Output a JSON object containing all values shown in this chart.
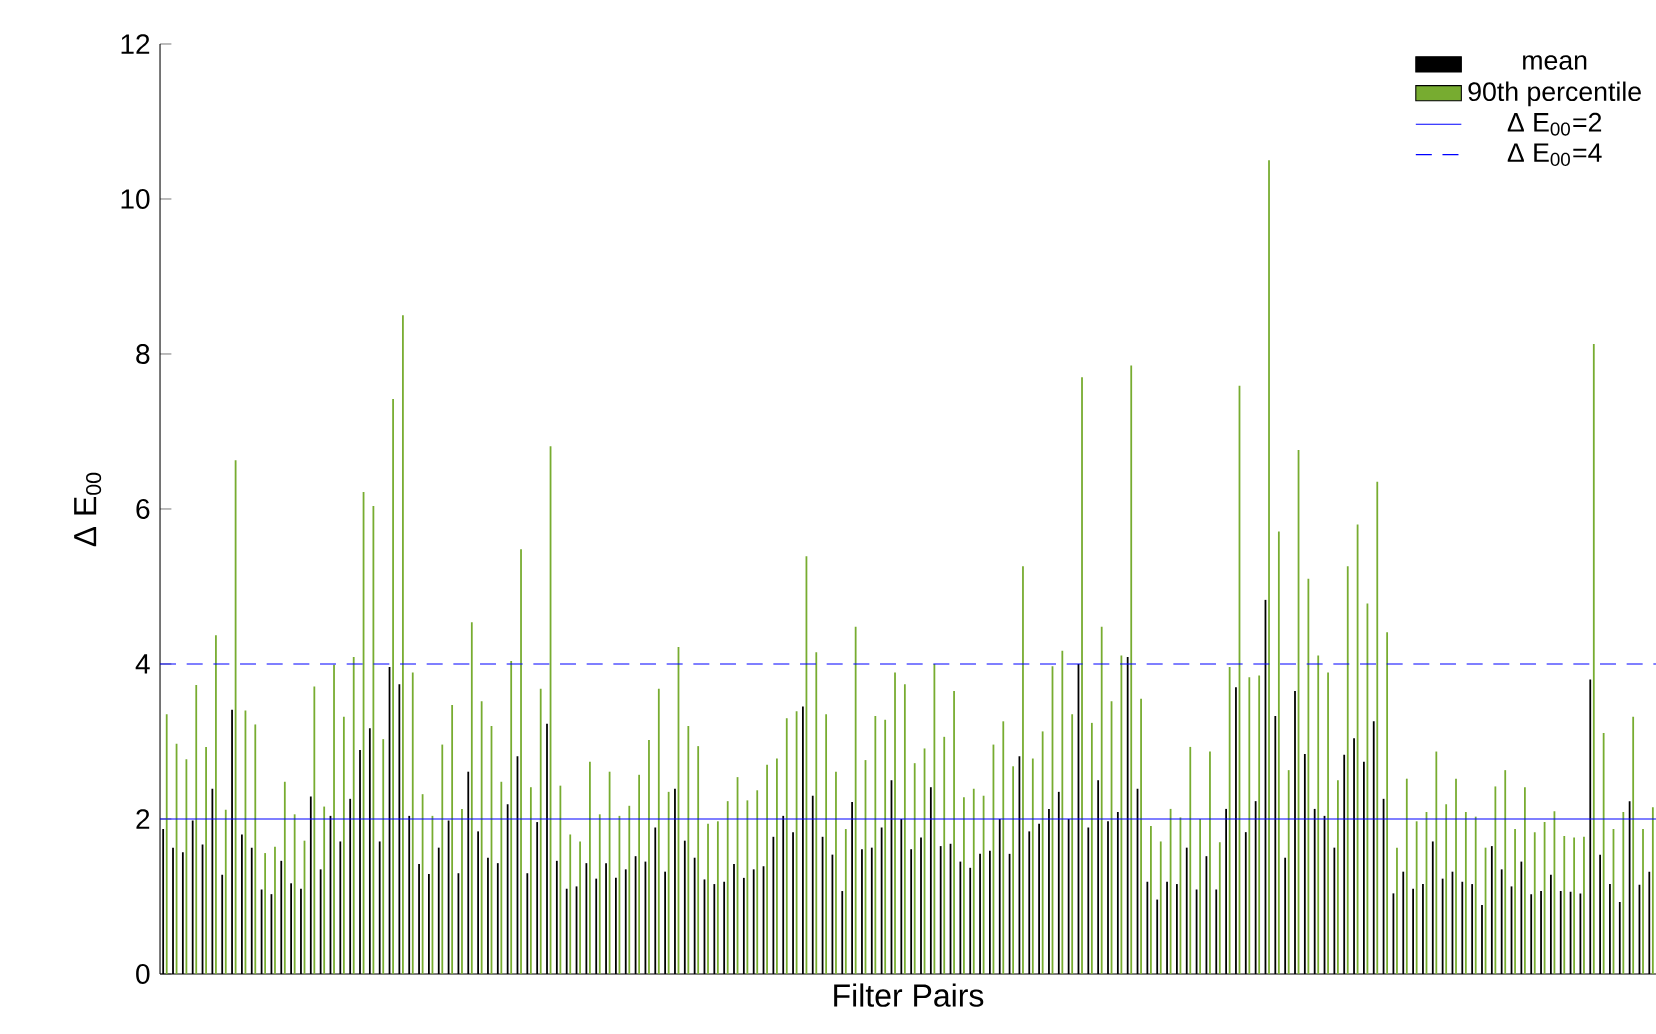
{
  "chart_data": {
    "type": "bar",
    "xlabel": "Filter Pairs",
    "ylabel": "Δ E$_{00}$",
    "categories": [
      null,
      null,
      null,
      null,
      null,
      null,
      null,
      null,
      null,
      null,
      null,
      null,
      null,
      null,
      null,
      null,
      null,
      null,
      null,
      null,
      null,
      null,
      null,
      null,
      null,
      null,
      null,
      null,
      null,
      null,
      null,
      null,
      null,
      null,
      null,
      null,
      null,
      null,
      null,
      null,
      null,
      null,
      null,
      null,
      null,
      null,
      null,
      null,
      null,
      null,
      null,
      null,
      null,
      null,
      null,
      null,
      null,
      null,
      null,
      null,
      null,
      null,
      null,
      null,
      null,
      null,
      null,
      null,
      null,
      null,
      null,
      null,
      null,
      null,
      null,
      null,
      null,
      null,
      null,
      null,
      null,
      null,
      null,
      null,
      null,
      null,
      null,
      null,
      null,
      null,
      null,
      null,
      null,
      null,
      null,
      null,
      null,
      null,
      null,
      null,
      null,
      null,
      null,
      null,
      null,
      null,
      null,
      null,
      null,
      null,
      null,
      null,
      null,
      null,
      null,
      null,
      null,
      null,
      null,
      null,
      null,
      null,
      null,
      null,
      null,
      null,
      null,
      null,
      null,
      null,
      null,
      null,
      null,
      null,
      null,
      null,
      null,
      null,
      null,
      null,
      null,
      null,
      null,
      null,
      null,
      null,
      null,
      null,
      null,
      null,
      null,
      null
    ],
    "series": [
      {
        "name": "mean",
        "color": "#000000",
        "values": [
          1.87,
          1.63,
          1.57,
          1.98,
          1.67,
          2.39,
          1.28,
          3.41,
          1.8,
          1.63,
          1.09,
          1.03,
          1.46,
          1.17,
          1.1,
          2.29,
          1.35,
          2.04,
          1.71,
          2.26,
          2.89,
          3.17,
          1.71,
          3.96,
          3.74,
          2.04,
          1.42,
          1.29,
          1.63,
          1.98,
          1.3,
          2.61,
          1.84,
          1.5,
          1.43,
          2.19,
          2.81,
          1.3,
          1.96,
          3.23,
          1.46,
          1.1,
          1.13,
          1.43,
          1.23,
          1.43,
          1.24,
          1.35,
          1.52,
          1.45,
          1.89,
          1.32,
          2.39,
          1.72,
          1.5,
          1.22,
          1.16,
          1.19,
          1.42,
          1.24,
          1.35,
          1.39,
          1.77,
          2.04,
          1.83,
          3.45,
          2.3,
          1.77,
          1.54,
          1.07,
          2.22,
          1.61,
          1.63,
          1.89,
          2.5,
          2.0,
          1.61,
          1.76,
          2.41,
          1.65,
          1.68,
          1.45,
          1.37,
          1.55,
          1.59,
          2.0,
          1.55,
          2.81,
          1.84,
          1.94,
          2.13,
          2.35,
          2.0,
          4.0,
          1.89,
          2.5,
          1.97,
          2.09,
          4.09,
          2.39,
          1.19,
          0.96,
          1.19,
          1.16,
          1.63,
          1.09,
          1.52,
          1.09,
          2.13,
          3.7,
          1.83,
          2.23,
          4.83,
          3.33,
          1.5,
          3.65,
          2.84,
          2.13,
          2.04,
          1.63,
          2.83,
          3.04,
          2.74,
          3.26,
          2.26,
          1.04,
          1.32,
          1.1,
          1.16,
          1.71,
          1.23,
          1.32,
          1.19,
          1.16,
          0.89,
          1.65,
          1.35,
          1.13,
          1.45,
          1.03,
          1.07,
          1.28,
          1.07,
          1.06,
          1.04,
          3.8,
          1.54,
          1.16,
          0.93,
          2.23,
          1.15,
          1.32
        ]
      },
      {
        "name": "90th percentile",
        "color": "#77ac30",
        "values": [
          3.35,
          2.97,
          2.77,
          3.73,
          2.93,
          4.37,
          2.12,
          6.63,
          3.4,
          3.22,
          1.56,
          1.64,
          2.48,
          2.06,
          1.72,
          3.71,
          2.16,
          3.99,
          3.32,
          4.09,
          6.22,
          6.04,
          3.03,
          7.42,
          8.5,
          3.89,
          2.32,
          2.04,
          2.96,
          3.47,
          2.13,
          4.54,
          3.52,
          3.2,
          2.48,
          4.04,
          5.48,
          2.41,
          3.68,
          6.81,
          2.43,
          1.8,
          1.71,
          2.74,
          2.06,
          2.61,
          2.04,
          2.17,
          2.57,
          3.02,
          3.68,
          2.35,
          4.22,
          3.2,
          2.94,
          1.94,
          1.97,
          2.23,
          2.54,
          2.24,
          2.37,
          2.7,
          2.78,
          3.3,
          3.39,
          5.39,
          4.15,
          3.35,
          2.61,
          1.87,
          4.48,
          2.76,
          3.33,
          3.28,
          3.89,
          3.74,
          2.72,
          2.91,
          4.0,
          3.06,
          3.65,
          2.28,
          2.39,
          2.3,
          2.96,
          3.26,
          2.68,
          5.26,
          2.78,
          3.13,
          3.97,
          4.17,
          3.35,
          7.7,
          3.24,
          4.48,
          3.52,
          4.11,
          7.85,
          3.55,
          1.91,
          1.71,
          2.13,
          2.02,
          2.93,
          2.0,
          2.87,
          1.7,
          3.96,
          7.59,
          3.83,
          3.85,
          10.5,
          5.71,
          2.63,
          6.76,
          5.1,
          4.11,
          3.89,
          2.5,
          5.26,
          5.8,
          4.78,
          6.35,
          4.41,
          1.63,
          2.52,
          1.97,
          2.09,
          2.87,
          2.19,
          2.52,
          2.09,
          2.03,
          1.63,
          2.42,
          2.63,
          1.87,
          2.41,
          1.83,
          1.96,
          2.1,
          1.78,
          1.76,
          1.77,
          8.13,
          3.11,
          1.87,
          2.09,
          3.32,
          1.87,
          2.15
        ]
      }
    ],
    "ylim": [
      0,
      12
    ],
    "yticks": [
      0,
      2,
      4,
      6,
      8,
      10,
      12
    ],
    "ref_lines": [
      {
        "axis": "y",
        "value": 2,
        "label": "Δ E$_{00}$=2",
        "color": "#0000ff",
        "line_style": "solid"
      },
      {
        "axis": "y",
        "value": 4,
        "label": "Δ E$_{00}$=4",
        "color": "#0000ff",
        "line_style": "dashed"
      }
    ],
    "legend": "top right"
  }
}
